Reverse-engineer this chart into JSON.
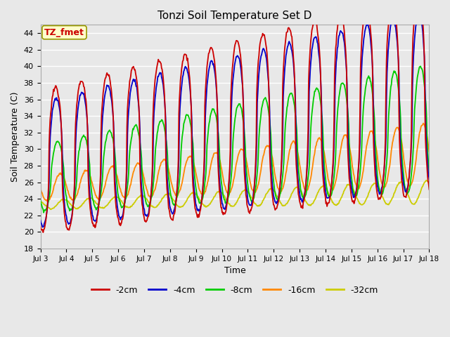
{
  "title": "Tonzi Soil Temperature Set D",
  "xlabel": "Time",
  "ylabel": "Soil Temperature (C)",
  "ylim": [
    18,
    45
  ],
  "yticks": [
    18,
    20,
    22,
    24,
    26,
    28,
    30,
    32,
    34,
    36,
    38,
    40,
    42,
    44
  ],
  "x_tick_labels": [
    "Jul 3",
    "Jul 4",
    "Jul 5",
    "Jul 6",
    "Jul 7",
    "Jul 8",
    "Jul 9",
    "Jul 10",
    "Jul 11",
    "Jul 12",
    "Jul 13",
    "Jul 14",
    "Jul 15",
    "Jul 16",
    "Jul 17",
    "Jul 18"
  ],
  "legend_labels": [
    "-2cm",
    "-4cm",
    "-8cm",
    "-16cm",
    "-32cm"
  ],
  "legend_colors": [
    "#cc0000",
    "#0000cc",
    "#00cc00",
    "#ff8800",
    "#cccc00"
  ],
  "annotation_text": "TZ_fmet",
  "annotation_bg": "#ffffcc",
  "annotation_border": "#999900",
  "annotation_text_color": "#cc0000",
  "plot_bg": "#e8e8e8",
  "fig_bg": "#e8e8e8",
  "grid_color": "#ffffff"
}
